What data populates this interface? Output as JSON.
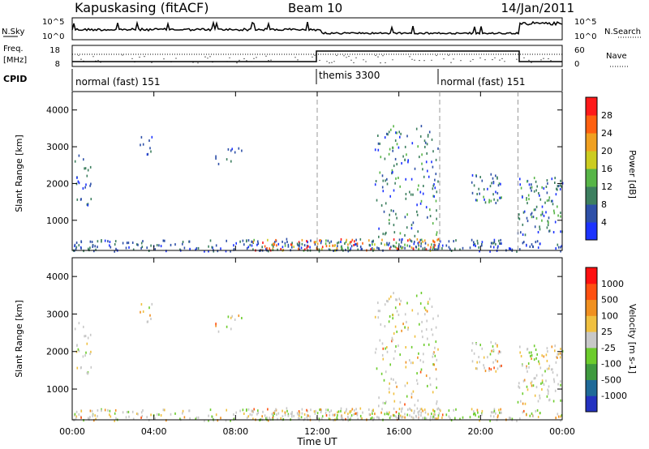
{
  "header": {
    "station": "Kapuskasing (fitACF)",
    "beam": "Beam 10",
    "date": "14/Jan/2011"
  },
  "nsky_panel": {
    "left_label": "N.Sky",
    "right_label": "N.Search",
    "left_ticks": [
      "10^5",
      "10^0"
    ],
    "right_ticks": [
      "10^5",
      "10^0"
    ]
  },
  "freq_panel": {
    "left_label_1": "Freq.",
    "left_label_2": "[MHz]",
    "right_label": "Nave",
    "left_ticks": [
      "18",
      "8"
    ],
    "right_ticks": [
      "60",
      "0"
    ]
  },
  "cpid_panel": {
    "label": "CPID",
    "modes": [
      {
        "name": "normal (fast) 151",
        "start": "00:00",
        "end": "12:00"
      },
      {
        "name": "themis 3300",
        "start": "12:00",
        "end": "18:00"
      },
      {
        "name": "normal (fast) 151",
        "start": "18:00",
        "end": "24:00"
      }
    ]
  },
  "axes": {
    "xlabel": "Time UT",
    "x_ticks": [
      "00:00",
      "04:00",
      "08:00",
      "12:00",
      "16:00",
      "20:00",
      "00:00"
    ],
    "ylabel": "Slant Range [km]",
    "y_ticks": [
      "1000",
      "2000",
      "3000",
      "4000"
    ]
  },
  "power_colorbar": {
    "label": "Power [dB]",
    "ticks": [
      "4",
      "8",
      "12",
      "16",
      "20",
      "24",
      "28"
    ],
    "colors": [
      "#1c33ff",
      "#2e50a8",
      "#3d7f5f",
      "#57b547",
      "#cccc20",
      "#f0a020",
      "#ff6010",
      "#ff1a1a"
    ]
  },
  "velocity_colorbar": {
    "label": "Velocity [m s-1]",
    "ticks": [
      "1000",
      "500",
      "100",
      "25",
      "-25",
      "-100",
      "-500",
      "-1000"
    ],
    "colors": [
      "#2432c0",
      "#1f6a98",
      "#3f9a3f",
      "#6ccc2c",
      "#c8c8c8",
      "#f0c040",
      "#f09020",
      "#ff5010",
      "#ff1010"
    ]
  },
  "chart_data": {
    "type": "heatmap",
    "x_range_hours": [
      0,
      24
    ],
    "y_range_km": [
      180,
      4500
    ],
    "dashed_time_markers": [
      "12:00",
      "18:00",
      "21:50"
    ],
    "power_scatter_regions": [
      {
        "t0": 0.0,
        "t1": 24.0,
        "r0": 180,
        "r1": 500,
        "density": 0.55,
        "level": "low"
      },
      {
        "t0": 8.8,
        "t1": 18.0,
        "r0": 200,
        "r1": 520,
        "density": 0.8,
        "level": "high"
      },
      {
        "t0": 0.1,
        "t1": 0.9,
        "r0": 1400,
        "r1": 2800,
        "density": 0.35,
        "level": "low"
      },
      {
        "t0": 3.3,
        "t1": 4.2,
        "r0": 2800,
        "r1": 3300,
        "density": 0.3,
        "level": "low"
      },
      {
        "t0": 7.0,
        "t1": 8.3,
        "r0": 2550,
        "r1": 3000,
        "density": 0.3,
        "level": "low"
      },
      {
        "t0": 14.8,
        "t1": 17.9,
        "r0": 500,
        "r1": 3600,
        "density": 0.25,
        "level": "mid"
      },
      {
        "t0": 19.5,
        "t1": 21.0,
        "r0": 1500,
        "r1": 2300,
        "density": 0.55,
        "level": "mid"
      },
      {
        "t0": 21.8,
        "t1": 24.0,
        "r0": 600,
        "r1": 2200,
        "density": 0.45,
        "level": "mid"
      }
    ]
  }
}
